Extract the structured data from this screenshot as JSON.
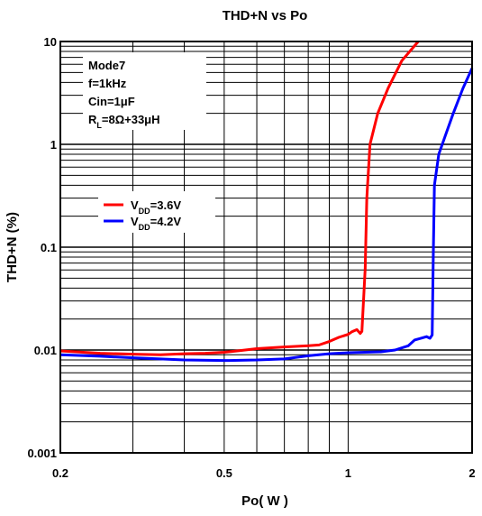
{
  "chart_data": {
    "type": "line",
    "title": "THD+N vs Po",
    "xlabel": "Po( W )",
    "ylabel": "THD+N (%)",
    "x_scale": "log",
    "y_scale": "log",
    "xlim": [
      0.2,
      2
    ],
    "ylim": [
      0.001,
      10
    ],
    "x_ticks": [
      {
        "value": 0.2,
        "label": "0.2"
      },
      {
        "value": 0.5,
        "label": "0.5"
      },
      {
        "value": 1,
        "label": "1"
      },
      {
        "value": 2,
        "label": "2"
      }
    ],
    "y_ticks": [
      {
        "value": 0.001,
        "label": "0.001"
      },
      {
        "value": 0.01,
        "label": "0.01"
      },
      {
        "value": 0.1,
        "label": "0.1"
      },
      {
        "value": 1,
        "label": "1"
      },
      {
        "value": 10,
        "label": "10"
      }
    ],
    "grid": true,
    "conditions": [
      "Mode7",
      "f=1kHz",
      "Cin=1μF",
      "RL=8Ω+33μH"
    ],
    "legend_position": "left-middle",
    "series": [
      {
        "name": "VDD=3.6V",
        "color": "#ff0000",
        "points": [
          [
            0.2,
            0.0098
          ],
          [
            0.25,
            0.0093
          ],
          [
            0.3,
            0.0091
          ],
          [
            0.35,
            0.009
          ],
          [
            0.4,
            0.0092
          ],
          [
            0.45,
            0.0093
          ],
          [
            0.5,
            0.0095
          ],
          [
            0.55,
            0.0099
          ],
          [
            0.6,
            0.0103
          ],
          [
            0.7,
            0.0107
          ],
          [
            0.8,
            0.011
          ],
          [
            0.85,
            0.0112
          ],
          [
            0.9,
            0.0121
          ],
          [
            0.95,
            0.0133
          ],
          [
            1.0,
            0.0142
          ],
          [
            1.02,
            0.015
          ],
          [
            1.05,
            0.0158
          ],
          [
            1.07,
            0.0145
          ],
          [
            1.08,
            0.0152
          ],
          [
            1.1,
            0.062
          ],
          [
            1.11,
            0.3
          ],
          [
            1.13,
            1.0
          ],
          [
            1.18,
            2.0
          ],
          [
            1.25,
            3.5
          ],
          [
            1.35,
            6.5
          ],
          [
            1.48,
            10.0
          ]
        ]
      },
      {
        "name": "VDD=4.2V",
        "color": "#0000ff",
        "points": [
          [
            0.2,
            0.009
          ],
          [
            0.25,
            0.0087
          ],
          [
            0.3,
            0.0084
          ],
          [
            0.35,
            0.0082
          ],
          [
            0.4,
            0.008
          ],
          [
            0.5,
            0.0079
          ],
          [
            0.6,
            0.008
          ],
          [
            0.7,
            0.0082
          ],
          [
            0.8,
            0.0088
          ],
          [
            0.9,
            0.0092
          ],
          [
            1.0,
            0.0094
          ],
          [
            1.1,
            0.0095
          ],
          [
            1.2,
            0.0096
          ],
          [
            1.3,
            0.01
          ],
          [
            1.4,
            0.011
          ],
          [
            1.45,
            0.0125
          ],
          [
            1.5,
            0.013
          ],
          [
            1.55,
            0.0135
          ],
          [
            1.58,
            0.013
          ],
          [
            1.6,
            0.014
          ],
          [
            1.61,
            0.085
          ],
          [
            1.62,
            0.4
          ],
          [
            1.66,
            0.8
          ],
          [
            1.72,
            1.2
          ],
          [
            1.8,
            2.0
          ],
          [
            1.9,
            3.5
          ],
          [
            2.0,
            5.5
          ]
        ]
      }
    ]
  }
}
